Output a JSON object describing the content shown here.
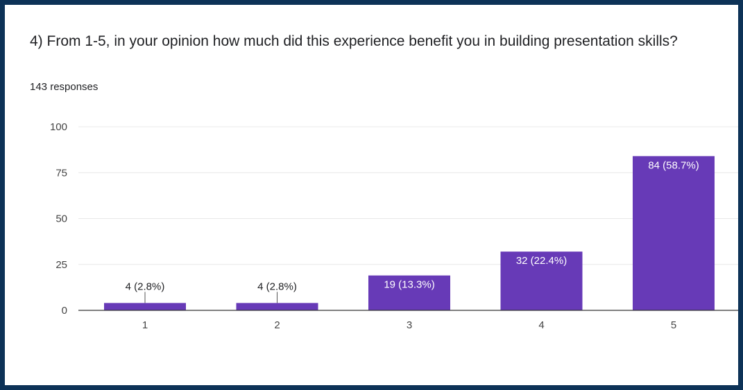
{
  "question": {
    "title": "4) From 1-5, in your opinion how much did this experience benefit you in building presentation skills?",
    "responses": "143 responses"
  },
  "colors": {
    "bar": "#673ab7",
    "gridline": "#e8e8e8",
    "axis": "#333333",
    "label_inside": "#ffffff",
    "label_outside": "#202124"
  },
  "chart_data": {
    "type": "bar",
    "title": "4) From 1-5, in your opinion how much did this experience benefit you in building presentation skills?",
    "subtitle": "143 responses",
    "categories": [
      "1",
      "2",
      "3",
      "4",
      "5"
    ],
    "values": [
      4,
      4,
      19,
      32,
      84
    ],
    "data_labels": [
      "4 (2.8%)",
      "4 (2.8%)",
      "19 (13.3%)",
      "32 (22.4%)",
      "84 (58.7%)"
    ],
    "ylim": [
      0,
      100
    ],
    "yticks": [
      "0",
      "25",
      "50",
      "75",
      "100"
    ],
    "grid": true,
    "legend": "none",
    "xlabel": "",
    "ylabel": ""
  }
}
